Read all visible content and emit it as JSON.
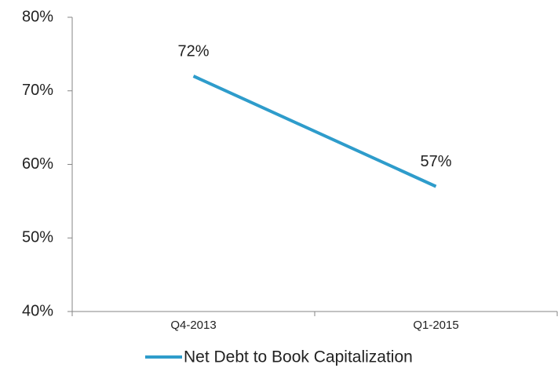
{
  "chart_data": {
    "type": "line",
    "categories": [
      "Q4-2013",
      "Q1-2015"
    ],
    "series": [
      {
        "name": "Net Debt to Book Capitalization",
        "color": "#2e9ccb",
        "values": [
          72,
          57
        ],
        "value_labels": [
          "72%",
          "57%"
        ]
      }
    ],
    "ylim": [
      40,
      80
    ],
    "yticks": [
      {
        "value": 40,
        "label": "40%"
      },
      {
        "value": 50,
        "label": "50%"
      },
      {
        "value": 60,
        "label": "60%"
      },
      {
        "value": 70,
        "label": "70%"
      },
      {
        "value": 80,
        "label": "80%"
      }
    ],
    "legend": "bottom"
  }
}
